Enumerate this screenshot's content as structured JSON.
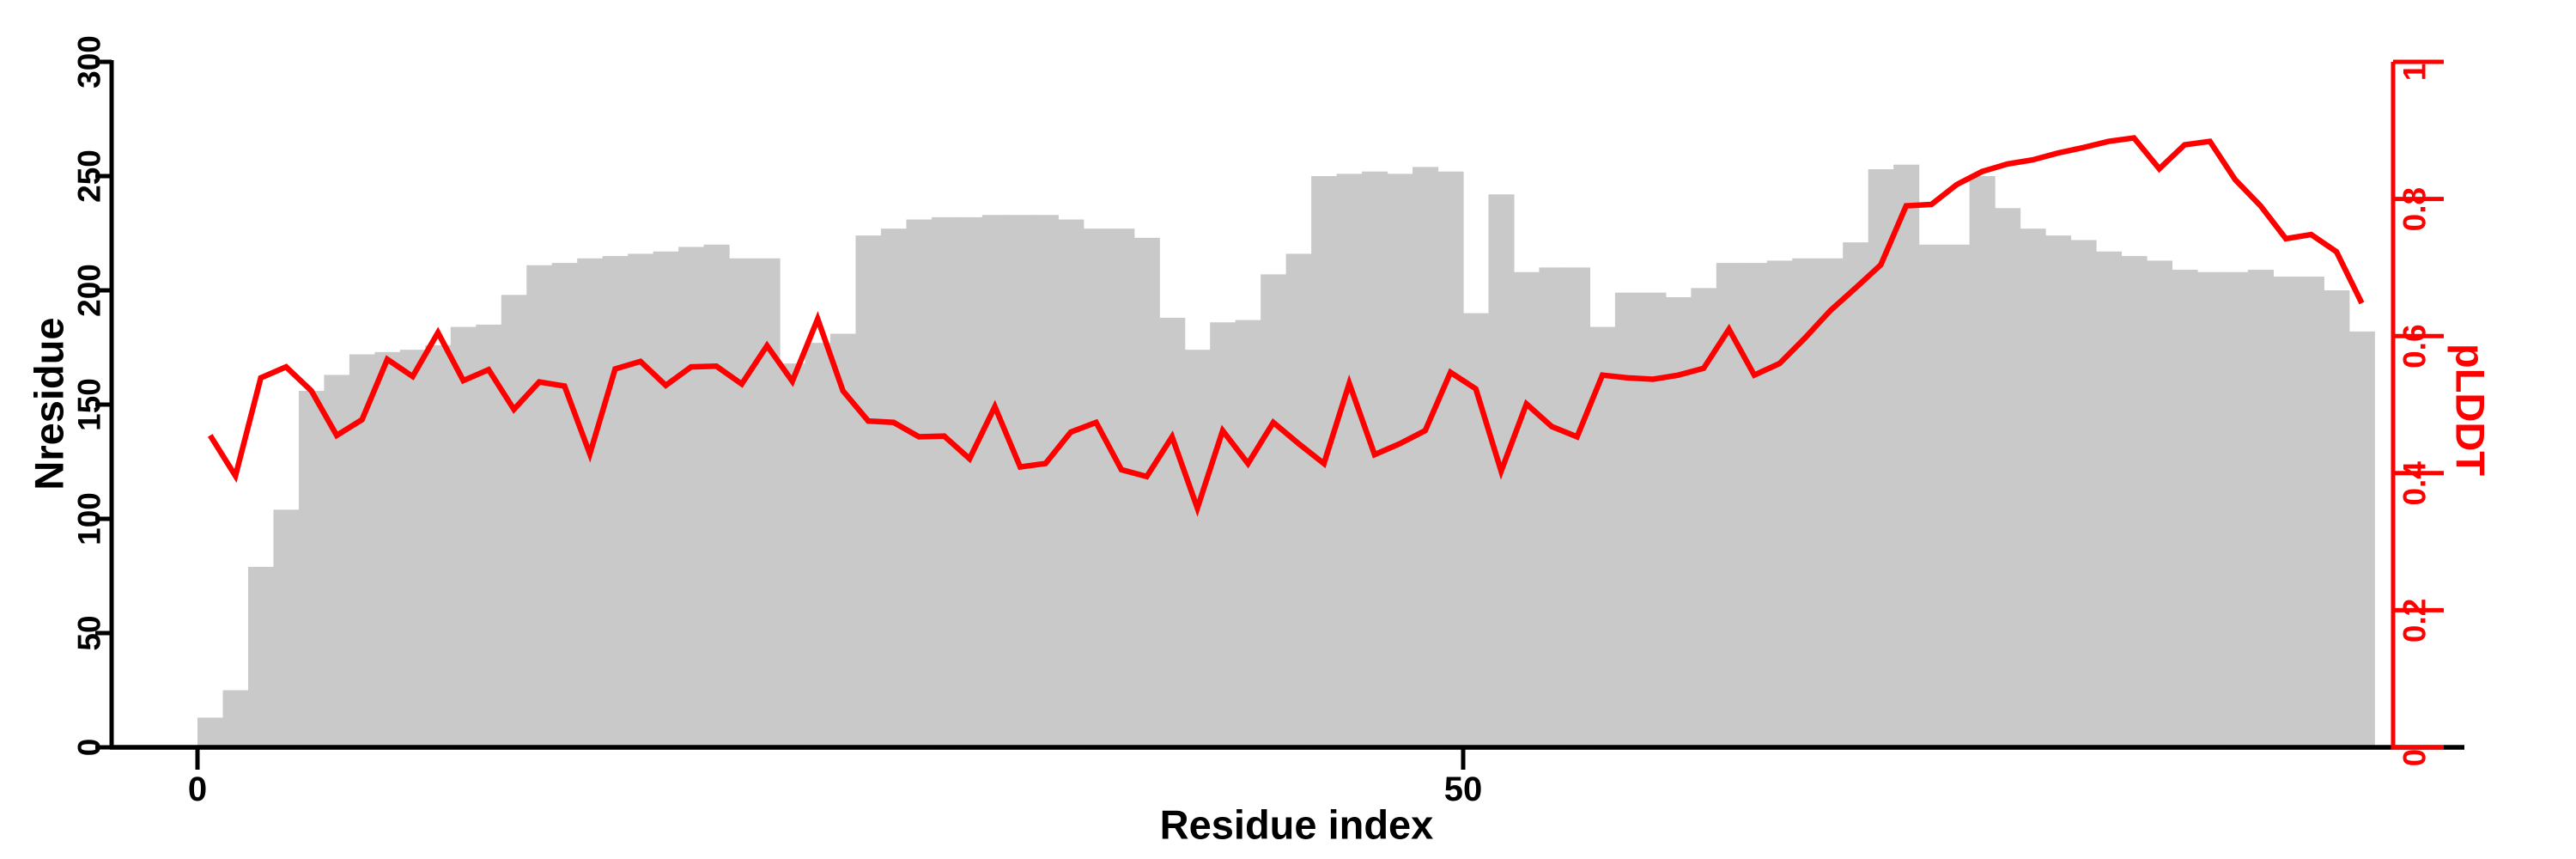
{
  "labels": {
    "xlabel": "Residue index",
    "ylabel_left": "Nresidue",
    "ylabel_right": "pLDDT"
  },
  "chart_data": {
    "type": "bar",
    "subtype": "bar-with-overlaid-line-dual-axis",
    "title": "",
    "xlabel": "Residue index",
    "ylabel_left": "Nresidue",
    "ylabel_right": "pLDDT",
    "x_tick_labels": [
      "0",
      "50"
    ],
    "x_tick_values": [
      0,
      50
    ],
    "y_left_tick_values": [
      0,
      50,
      100,
      150,
      200,
      250,
      300
    ],
    "y_left_tick_labels": [
      "0",
      "50",
      "100",
      "150",
      "200",
      "250",
      "300"
    ],
    "y_right_tick_values": [
      0,
      0.2,
      0.4,
      0.6,
      0.8,
      1
    ],
    "y_right_tick_labels": [
      "0",
      "0.2",
      "0.4",
      "0.6",
      "0.8",
      "1"
    ],
    "ylim_left": [
      0,
      300
    ],
    "ylim_right": [
      0,
      1
    ],
    "grid": false,
    "legend": "none",
    "bar_color": "#c9c9c9",
    "line_color": "#ff0000",
    "axis_color": "#000000",
    "right_axis_color": "#ff0000",
    "background_color": "#ffffff",
    "x_start_residue": 0,
    "series": [
      {
        "name": "Nresidue",
        "type": "bar",
        "axis": "left",
        "values": [
          13,
          25,
          79,
          104,
          156,
          163,
          172,
          173,
          174,
          176,
          184,
          185,
          198,
          211,
          212,
          214,
          215,
          216,
          217,
          219,
          220,
          214,
          214,
          168,
          177,
          181,
          224,
          227,
          231,
          232,
          232,
          233,
          233,
          233,
          231,
          227,
          227,
          223,
          188,
          174,
          186,
          187,
          207,
          216,
          250,
          251,
          252,
          251,
          254,
          252,
          190,
          242,
          208,
          210,
          210,
          184,
          199,
          199,
          197,
          201,
          212,
          212,
          213,
          214,
          214,
          221,
          253,
          255,
          220,
          220,
          250,
          236,
          227,
          224,
          222,
          217,
          215,
          213,
          209,
          208,
          208,
          209,
          206,
          206,
          200,
          182
        ]
      },
      {
        "name": "pLDDT",
        "type": "line",
        "axis": "right",
        "values": [
          0.455,
          0.396,
          0.539,
          0.555,
          0.52,
          0.455,
          0.478,
          0.566,
          0.541,
          0.605,
          0.535,
          0.551,
          0.493,
          0.533,
          0.527,
          0.428,
          0.552,
          0.563,
          0.528,
          0.555,
          0.556,
          0.53,
          0.586,
          0.534,
          0.625,
          0.52,
          0.476,
          0.474,
          0.453,
          0.454,
          0.421,
          0.497,
          0.409,
          0.414,
          0.46,
          0.474,
          0.405,
          0.395,
          0.453,
          0.349,
          0.462,
          0.414,
          0.474,
          0.443,
          0.414,
          0.531,
          0.427,
          0.443,
          0.462,
          0.547,
          0.523,
          0.403,
          0.501,
          0.468,
          0.453,
          0.543,
          0.539,
          0.537,
          0.543,
          0.553,
          0.61,
          0.543,
          0.56,
          0.597,
          0.637,
          0.67,
          0.704,
          0.79,
          0.792,
          0.821,
          0.84,
          0.851,
          0.857,
          0.867,
          0.875,
          0.884,
          0.889,
          0.844,
          0.879,
          0.884,
          0.828,
          0.79,
          0.742,
          0.748,
          0.723,
          0.648
        ]
      }
    ]
  }
}
